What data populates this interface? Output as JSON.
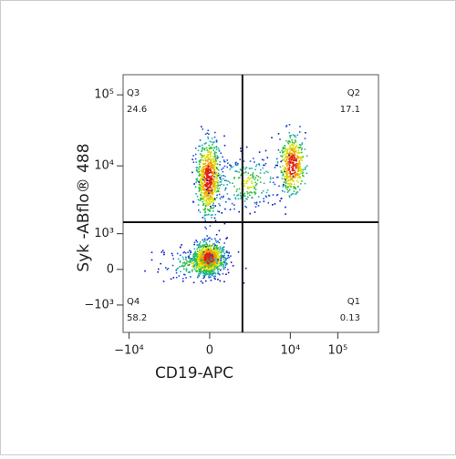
{
  "chart_data": {
    "type": "quadrant-scatter",
    "x_label": "CD19-APC",
    "y_label": "Syk -ABflo® 488",
    "xlim": [
      -13300,
      720000
    ],
    "ylim": [
      -2650,
      192000
    ],
    "xticks": [
      {
        "value": -10000,
        "label": "−10⁴"
      },
      0,
      {
        "value": 10000,
        "label": "10⁴"
      },
      {
        "value": 100000,
        "label": "10⁵"
      }
    ],
    "yticks": [
      {
        "value": -1000,
        "label": "−10³"
      },
      0,
      {
        "value": 1000,
        "label": "10³"
      },
      {
        "value": 10000,
        "label": "10⁴"
      },
      {
        "value": 100000,
        "label": "10⁵"
      }
    ],
    "gate": {
      "x": 940,
      "y": 1540
    },
    "quadrants": [
      {
        "name": "Q3",
        "value": 24.6,
        "corner": "top-left"
      },
      {
        "name": "Q2",
        "value": 17.1,
        "corner": "top-right"
      },
      {
        "name": "Q4",
        "value": 58.2,
        "corner": "bottom-left"
      },
      {
        "name": "Q1",
        "value": 0.13,
        "corner": "bottom-right"
      }
    ]
  }
}
